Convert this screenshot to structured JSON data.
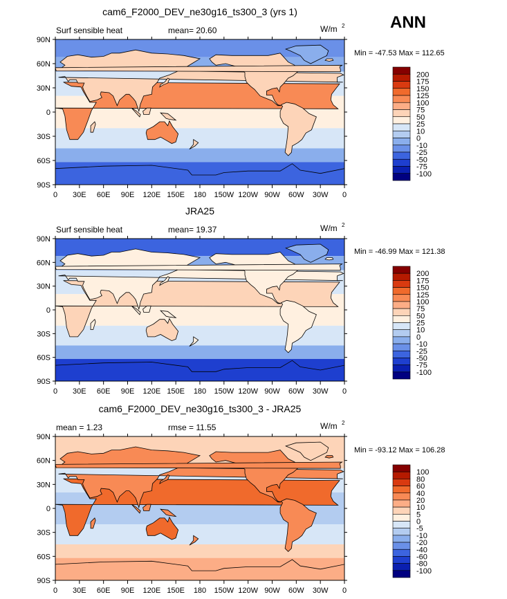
{
  "season": "ANN",
  "colors": {
    "land_outline": "#000000",
    "frame": "#000000",
    "page_bg": "#ffffff"
  },
  "chart_data": [
    {
      "type": "heatmap",
      "title": "cam6_F2000_DEV_ne30g16_ts300_3 (yrs 1)",
      "left_label": "Surf sensible heat",
      "center_label": "mean=  20.60",
      "units": "W/m",
      "units_exp": "2",
      "stats": "Min = -47.53  Max = 112.65",
      "xlim": [
        0,
        360
      ],
      "ylim": [
        -90,
        90
      ],
      "x_ticks": [
        "0",
        "30E",
        "60E",
        "90E",
        "120E",
        "150E",
        "180",
        "150W",
        "120W",
        "90W",
        "60W",
        "30W",
        "0"
      ],
      "y_ticks": [
        "90N",
        "60N",
        "30N",
        "0",
        "30S",
        "60S",
        "90S"
      ],
      "colorbar_labels": [
        "200",
        "175",
        "150",
        "125",
        "100",
        "75",
        "50",
        "25",
        "10",
        "0",
        "-10",
        "-25",
        "-50",
        "-75",
        "-100"
      ],
      "colorbar_colors": [
        "#850000",
        "#b51a00",
        "#d93a10",
        "#f06a2c",
        "#f88a55",
        "#fcad86",
        "#fdd4b8",
        "#fff0e0",
        "#d7e6f7",
        "#b3ccf0",
        "#8aaeec",
        "#6a90e8",
        "#3c64df",
        "#1e3fcf",
        "#0a1fb0",
        "#000080"
      ]
    },
    {
      "type": "heatmap",
      "title": "JRA25",
      "left_label": "Surf sensible heat",
      "center_label": "mean=  19.37",
      "units": "W/m",
      "units_exp": "2",
      "stats": "Min = -46.99  Max = 121.38",
      "xlim": [
        0,
        360
      ],
      "ylim": [
        -90,
        90
      ],
      "x_ticks": [
        "0",
        "30E",
        "60E",
        "90E",
        "120E",
        "150E",
        "180",
        "150W",
        "120W",
        "90W",
        "60W",
        "30W",
        "0"
      ],
      "y_ticks": [
        "90N",
        "60N",
        "30N",
        "0",
        "30S",
        "60S",
        "90S"
      ],
      "colorbar_labels": [
        "200",
        "175",
        "150",
        "125",
        "100",
        "75",
        "50",
        "25",
        "10",
        "0",
        "-10",
        "-25",
        "-50",
        "-75",
        "-100"
      ],
      "colorbar_colors": [
        "#850000",
        "#b51a00",
        "#d93a10",
        "#f06a2c",
        "#f88a55",
        "#fcad86",
        "#fdd4b8",
        "#fff0e0",
        "#d7e6f7",
        "#b3ccf0",
        "#8aaeec",
        "#6a90e8",
        "#3c64df",
        "#1e3fcf",
        "#0a1fb0",
        "#000080"
      ]
    },
    {
      "type": "heatmap",
      "title": "cam6_F2000_DEV_ne30g16_ts300_3 - JRA25",
      "left_label": "mean =    1.23",
      "center_label": "rmse =   11.55",
      "units": "W/m",
      "units_exp": "2",
      "stats": "Min = -93.12  Max = 106.28",
      "xlim": [
        0,
        360
      ],
      "ylim": [
        -90,
        90
      ],
      "x_ticks": [
        "0",
        "30E",
        "60E",
        "90E",
        "120E",
        "150E",
        "180",
        "150W",
        "120W",
        "90W",
        "60W",
        "30W",
        "0"
      ],
      "y_ticks": [
        "90N",
        "60N",
        "30N",
        "0",
        "30S",
        "60S",
        "90S"
      ],
      "colorbar_labels": [
        "100",
        "80",
        "60",
        "40",
        "20",
        "10",
        "5",
        "0",
        "-5",
        "-10",
        "-20",
        "-40",
        "-60",
        "-80",
        "-100"
      ],
      "colorbar_colors": [
        "#850000",
        "#b51a00",
        "#d93a10",
        "#f06a2c",
        "#f88a55",
        "#fcad86",
        "#fdd4b8",
        "#fff0e0",
        "#d7e6f7",
        "#b3ccf0",
        "#8aaeec",
        "#6a90e8",
        "#3c64df",
        "#1e3fcf",
        "#0a1fb0",
        "#000080"
      ]
    }
  ]
}
